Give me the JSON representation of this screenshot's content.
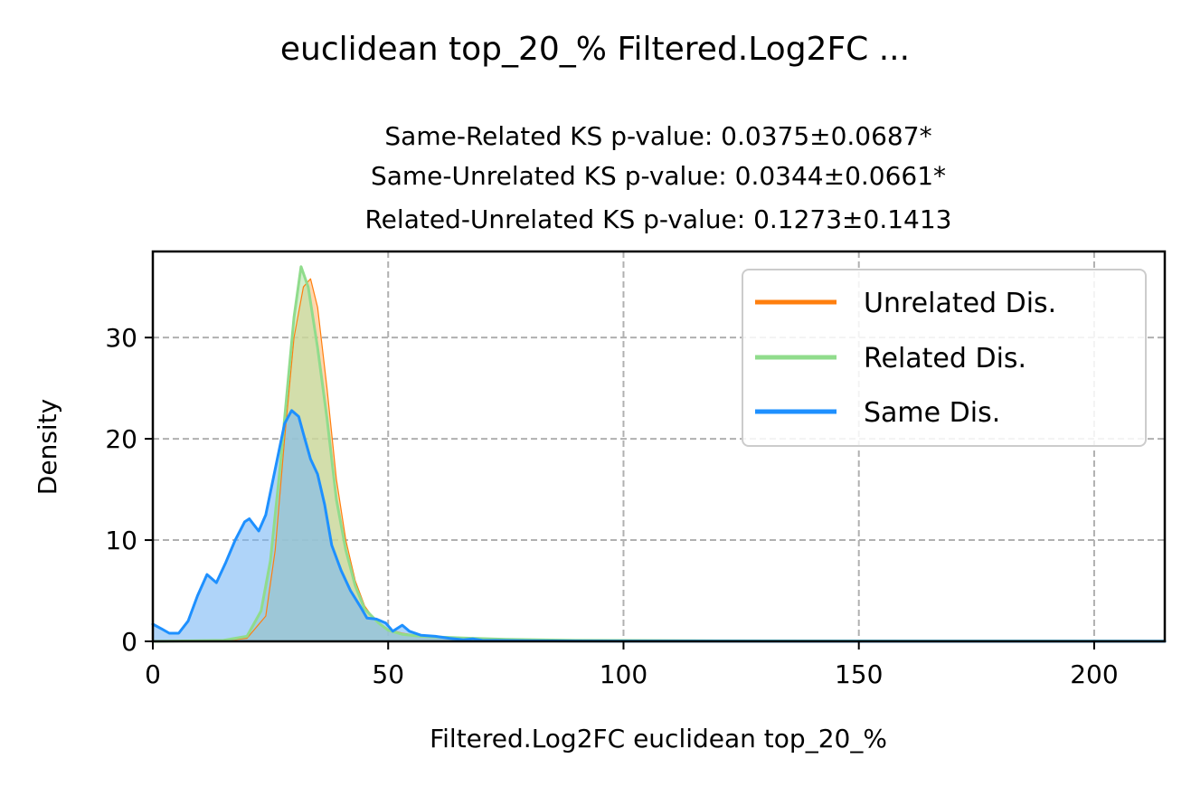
{
  "chart_data": {
    "type": "area",
    "suptitle": "euclidean top_20_% Filtered.Log2FC ...",
    "title_lines": [
      "Same-Related KS p-value: 0.0375±0.0687*",
      "Same-Unrelated KS p-value: 0.0344±0.0661*",
      "Related-Unrelated KS p-value: 0.1273±0.1413"
    ],
    "xlabel": "Filtered.Log2FC euclidean top_20_%",
    "ylabel": "Density",
    "xlim": [
      0,
      215
    ],
    "ylim": [
      0,
      38.5
    ],
    "xticks": [
      0,
      50,
      100,
      150,
      200
    ],
    "yticks": [
      0,
      10,
      20,
      30
    ],
    "grid": true,
    "legend_position": "top-right",
    "series": [
      {
        "name": "Unrelated Dis.",
        "color": "#ff7f0e",
        "fill_color": "#ffbb78",
        "line_width": 1.2,
        "points": [
          [
            0,
            0
          ],
          [
            15,
            0.05
          ],
          [
            20,
            0.3
          ],
          [
            24,
            2.5
          ],
          [
            26,
            9
          ],
          [
            28,
            20
          ],
          [
            30,
            30
          ],
          [
            32,
            35
          ],
          [
            33.5,
            35.8
          ],
          [
            35,
            33
          ],
          [
            37,
            25
          ],
          [
            39,
            16
          ],
          [
            41,
            10
          ],
          [
            43,
            6
          ],
          [
            45,
            3.5
          ],
          [
            47,
            2.2
          ],
          [
            50,
            1.2
          ],
          [
            53,
            0.8
          ],
          [
            56,
            0.6
          ],
          [
            60,
            0.45
          ],
          [
            65,
            0.3
          ],
          [
            70,
            0.2
          ],
          [
            80,
            0.1
          ],
          [
            100,
            0.05
          ],
          [
            150,
            0.02
          ],
          [
            215,
            0.01
          ]
        ]
      },
      {
        "name": "Related Dis.",
        "color": "#90dc8c",
        "fill_color": "#b6e3a9",
        "line_width": 3,
        "points": [
          [
            0,
            0
          ],
          [
            15,
            0.1
          ],
          [
            20,
            0.5
          ],
          [
            23,
            3
          ],
          [
            25,
            8
          ],
          [
            27,
            17
          ],
          [
            29,
            27
          ],
          [
            30,
            32
          ],
          [
            31.5,
            37
          ],
          [
            33,
            35
          ],
          [
            35,
            29
          ],
          [
            37,
            22
          ],
          [
            39,
            14
          ],
          [
            41,
            9
          ],
          [
            43,
            5.5
          ],
          [
            45,
            3.2
          ],
          [
            48,
            1.8
          ],
          [
            50,
            1.1
          ],
          [
            53,
            0.7
          ],
          [
            57,
            0.5
          ],
          [
            62,
            0.4
          ],
          [
            68,
            0.3
          ],
          [
            75,
            0.2
          ],
          [
            90,
            0.1
          ],
          [
            120,
            0.05
          ],
          [
            215,
            0.02
          ]
        ]
      },
      {
        "name": "Same Dis.",
        "color": "#1e90ff",
        "fill_color": "#7ab8f5",
        "line_width": 3,
        "points": [
          [
            0,
            1.7
          ],
          [
            2,
            1.2
          ],
          [
            3.5,
            0.8
          ],
          [
            5.5,
            0.8
          ],
          [
            7.5,
            2.0
          ],
          [
            9.5,
            4.5
          ],
          [
            11.5,
            6.6
          ],
          [
            13.5,
            5.8
          ],
          [
            15.5,
            7.8
          ],
          [
            17.5,
            10.0
          ],
          [
            19.5,
            11.8
          ],
          [
            20.5,
            12.1
          ],
          [
            21.5,
            11.5
          ],
          [
            22.5,
            10.9
          ],
          [
            24,
            12.5
          ],
          [
            26,
            17.0
          ],
          [
            28,
            21.5
          ],
          [
            29.5,
            22.8
          ],
          [
            31,
            22.2
          ],
          [
            32,
            20.5
          ],
          [
            33.5,
            18.0
          ],
          [
            35,
            16.5
          ],
          [
            36.5,
            13.5
          ],
          [
            38,
            9.5
          ],
          [
            40,
            7.0
          ],
          [
            42,
            5.0
          ],
          [
            44,
            3.5
          ],
          [
            45.5,
            2.3
          ],
          [
            47.5,
            2.2
          ],
          [
            49.5,
            1.8
          ],
          [
            51,
            1.0
          ],
          [
            53,
            1.6
          ],
          [
            54.5,
            1.0
          ],
          [
            57,
            0.6
          ],
          [
            60,
            0.5
          ],
          [
            63,
            0.3
          ],
          [
            66,
            0.15
          ],
          [
            68,
            0.25
          ],
          [
            70,
            0.1
          ],
          [
            80,
            0.05
          ],
          [
            100,
            0.02
          ],
          [
            215,
            0.01
          ]
        ]
      }
    ]
  }
}
